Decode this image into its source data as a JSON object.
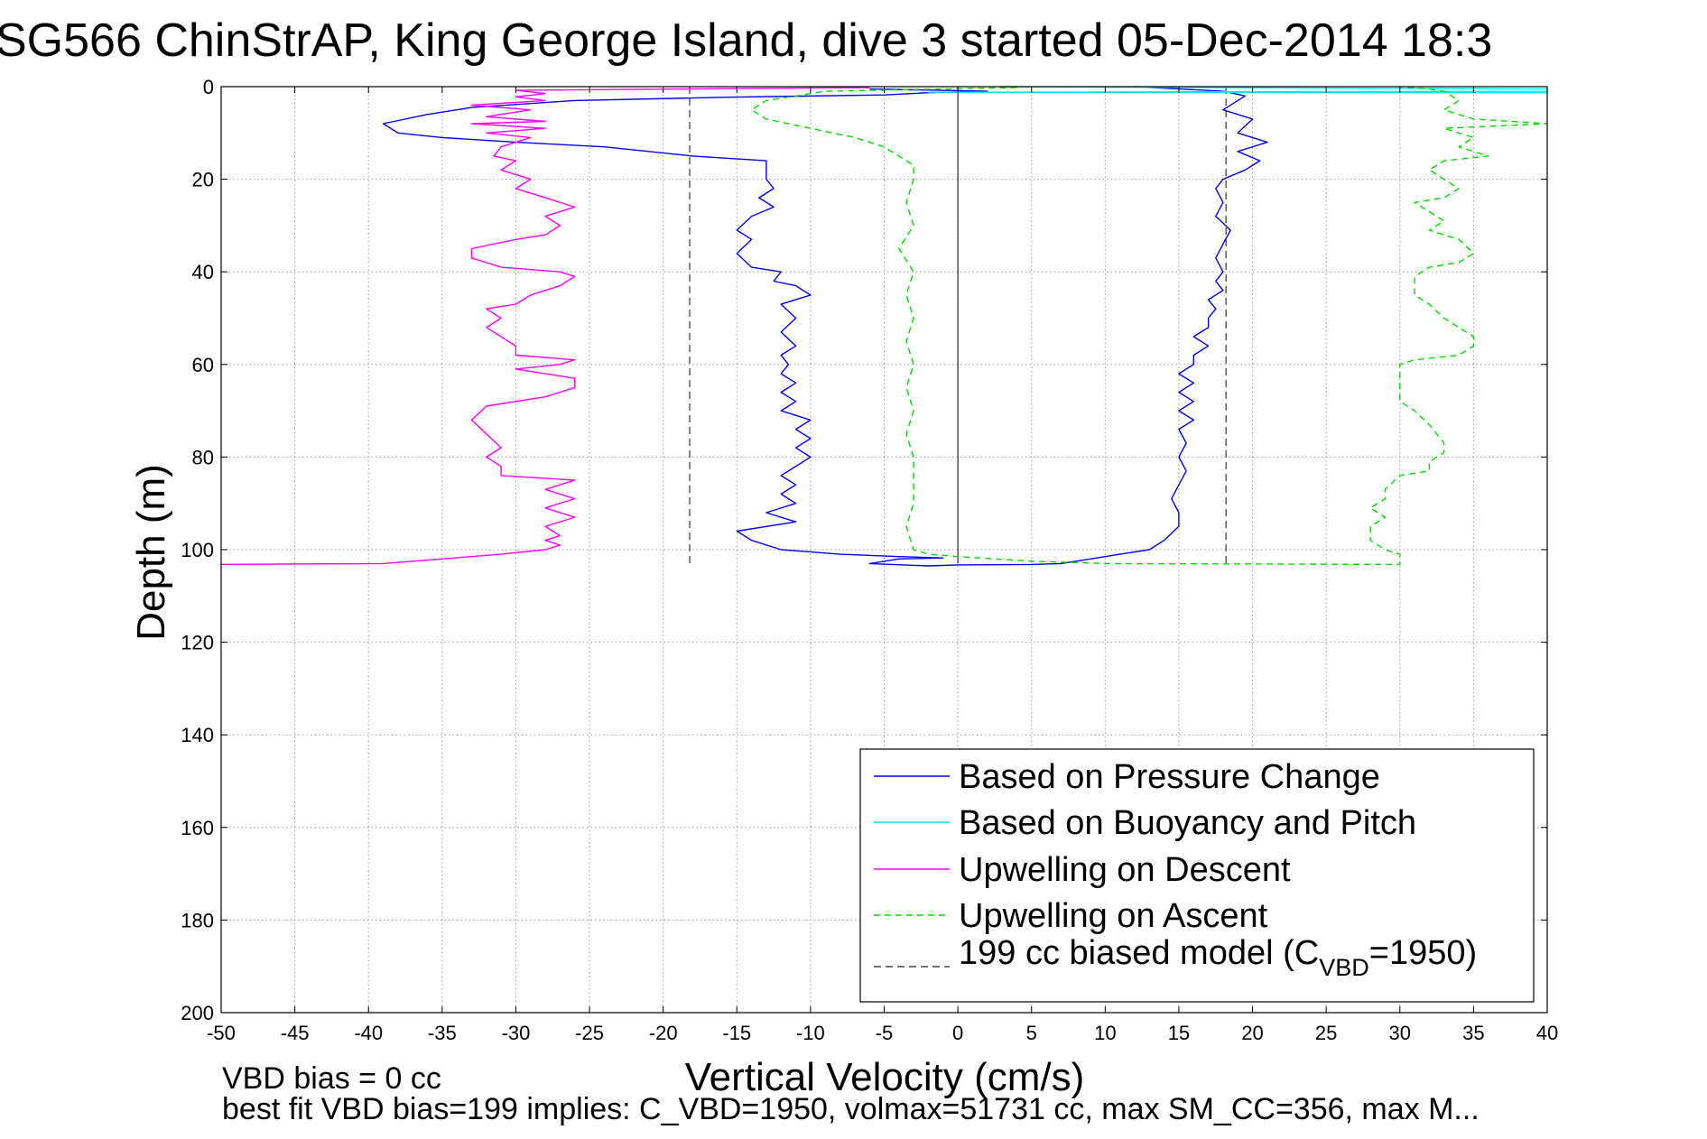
{
  "chart_data": {
    "type": "line",
    "title": "SG566 ChinStrAP, King George Island, dive 3 started 05-Dec-2014 18:3",
    "xlabel": "Vertical Velocity (cm/s)",
    "ylabel": "Depth (m)",
    "xlim": [
      -50,
      40
    ],
    "ylim": [
      0,
      200
    ],
    "y_reversed": true,
    "grid": true,
    "x_ticks": [
      -50,
      -45,
      -40,
      -35,
      -30,
      -25,
      -20,
      -15,
      -10,
      -5,
      0,
      5,
      10,
      15,
      20,
      25,
      30,
      35,
      40
    ],
    "y_ticks": [
      0,
      20,
      40,
      60,
      80,
      100,
      120,
      140,
      160,
      180,
      200
    ],
    "legend_position": "lower-right",
    "legend": {
      "pressure": "Based on Pressure Change",
      "buoyancy": "Based on Buoyancy and Pitch",
      "descent": "Upwelling on Descent",
      "ascent": "Upwelling on Ascent",
      "model_prefix": "199 cc biased model (C",
      "model_sub": "VBD",
      "model_suffix": "=1950)"
    },
    "series": [
      {
        "name": "Based on Pressure Change",
        "color": "#0000ff",
        "style": "solid",
        "points": [
          [
            -6,
            0.5
          ],
          [
            2,
            1
          ],
          [
            -2,
            1.3
          ],
          [
            -5,
            1.8
          ],
          [
            -16,
            2.3
          ],
          [
            -26,
            3
          ],
          [
            -33,
            4.5
          ],
          [
            -36,
            6
          ],
          [
            -39,
            8
          ],
          [
            -38,
            10
          ],
          [
            -35,
            11
          ],
          [
            -30,
            12
          ],
          [
            -24,
            13
          ],
          [
            -18,
            15
          ],
          [
            -13,
            16
          ],
          [
            -13,
            20
          ],
          [
            -12.5,
            22
          ],
          [
            -13.5,
            24
          ],
          [
            -12.5,
            26
          ],
          [
            -14,
            28
          ],
          [
            -15,
            31
          ],
          [
            -14,
            33
          ],
          [
            -15,
            36
          ],
          [
            -14,
            39
          ],
          [
            -12,
            40
          ],
          [
            -12.5,
            42
          ],
          [
            -11,
            43
          ],
          [
            -10,
            45
          ],
          [
            -12,
            47
          ],
          [
            -11,
            50
          ],
          [
            -12,
            53
          ],
          [
            -11,
            56
          ],
          [
            -12,
            58
          ],
          [
            -11.5,
            60
          ],
          [
            -12,
            62
          ],
          [
            -11,
            64
          ],
          [
            -12,
            66
          ],
          [
            -11,
            68
          ],
          [
            -12,
            70
          ],
          [
            -10,
            72
          ],
          [
            -11,
            74
          ],
          [
            -10,
            76
          ],
          [
            -11,
            78
          ],
          [
            -10,
            80
          ],
          [
            -11,
            82
          ],
          [
            -12,
            84
          ],
          [
            -11,
            86
          ],
          [
            -12,
            88
          ],
          [
            -11,
            90
          ],
          [
            -13,
            92
          ],
          [
            -11,
            94
          ],
          [
            -15,
            96
          ],
          [
            -14,
            98
          ],
          [
            -12,
            100
          ],
          [
            -8,
            101
          ],
          [
            -4,
            101.5
          ],
          [
            -1,
            101.8
          ],
          [
            -4,
            102
          ],
          [
            -6,
            103
          ],
          [
            -2,
            103.5
          ],
          [
            0,
            103.3
          ],
          [
            5,
            103.2
          ],
          [
            7,
            103
          ],
          [
            9,
            102
          ],
          [
            11,
            101
          ],
          [
            13,
            100
          ],
          [
            14,
            98
          ],
          [
            15,
            95
          ],
          [
            15,
            92
          ],
          [
            14.5,
            89
          ],
          [
            15,
            86
          ],
          [
            15.5,
            83
          ],
          [
            15,
            80
          ],
          [
            15.5,
            77
          ],
          [
            15,
            74
          ],
          [
            16,
            72
          ],
          [
            15,
            70
          ],
          [
            16,
            68
          ],
          [
            15,
            66
          ],
          [
            16,
            64
          ],
          [
            15,
            62
          ],
          [
            16,
            60
          ],
          [
            16,
            58
          ],
          [
            17,
            56
          ],
          [
            16,
            54
          ],
          [
            17,
            52
          ],
          [
            17,
            50
          ],
          [
            17.5,
            48
          ],
          [
            17,
            46
          ],
          [
            18,
            44
          ],
          [
            17.5,
            42
          ],
          [
            18,
            40
          ],
          [
            17.5,
            37
          ],
          [
            18,
            34
          ],
          [
            18.5,
            31
          ],
          [
            17.5,
            28
          ],
          [
            18,
            25
          ],
          [
            17.5,
            22
          ],
          [
            18,
            20
          ],
          [
            19.5,
            18
          ],
          [
            20.5,
            16
          ],
          [
            19,
            14
          ],
          [
            21,
            12
          ],
          [
            19,
            10
          ],
          [
            20,
            7
          ],
          [
            18,
            5
          ],
          [
            19.5,
            2
          ],
          [
            18,
            1
          ],
          [
            15,
            0.5
          ],
          [
            12,
            0
          ]
        ]
      },
      {
        "name": "Based on Buoyancy and Pitch",
        "color": "#00e8e8",
        "style": "solid",
        "points": [
          [
            3,
            0
          ],
          [
            40,
            0.5
          ],
          [
            40,
            1
          ],
          [
            -2,
            1.2
          ],
          [
            40,
            1.3
          ]
        ]
      },
      {
        "name": "Upwelling on Descent",
        "color": "#ff00ff",
        "style": "solid",
        "points": [
          [
            -6,
            0.2
          ],
          [
            -30,
            0.8
          ],
          [
            -28,
            1.5
          ],
          [
            -30,
            2.2
          ],
          [
            -28,
            3
          ],
          [
            -33,
            4
          ],
          [
            -29,
            5
          ],
          [
            -32,
            6.5
          ],
          [
            -28,
            7.5
          ],
          [
            -33,
            8
          ],
          [
            -28,
            9
          ],
          [
            -32,
            10
          ],
          [
            -29,
            11
          ],
          [
            -30,
            12
          ],
          [
            -31,
            13
          ],
          [
            -31.5,
            15
          ],
          [
            -30,
            16
          ],
          [
            -31,
            18
          ],
          [
            -29,
            20
          ],
          [
            -30,
            22
          ],
          [
            -28,
            24
          ],
          [
            -26,
            26
          ],
          [
            -28,
            28
          ],
          [
            -27,
            30
          ],
          [
            -28,
            32
          ],
          [
            -30,
            33
          ],
          [
            -33,
            35
          ],
          [
            -33,
            37
          ],
          [
            -31,
            39
          ],
          [
            -27,
            40
          ],
          [
            -26,
            41
          ],
          [
            -27,
            43
          ],
          [
            -29,
            45
          ],
          [
            -30,
            47
          ],
          [
            -32,
            48
          ],
          [
            -31,
            50
          ],
          [
            -32,
            52
          ],
          [
            -31,
            54
          ],
          [
            -30,
            56
          ],
          [
            -30,
            58
          ],
          [
            -26,
            59
          ],
          [
            -27,
            60
          ],
          [
            -30,
            61
          ],
          [
            -26,
            63
          ],
          [
            -26,
            65
          ],
          [
            -28,
            67
          ],
          [
            -32,
            69
          ],
          [
            -33,
            72
          ],
          [
            -32,
            75
          ],
          [
            -31,
            78
          ],
          [
            -32,
            80
          ],
          [
            -31,
            82
          ],
          [
            -31,
            84
          ],
          [
            -26,
            85
          ],
          [
            -28,
            87
          ],
          [
            -26,
            89
          ],
          [
            -28,
            91
          ],
          [
            -26,
            93
          ],
          [
            -28,
            95
          ],
          [
            -27,
            97
          ],
          [
            -28,
            98
          ],
          [
            -27,
            99
          ],
          [
            -28,
            100
          ],
          [
            -31,
            101
          ],
          [
            -35,
            102
          ],
          [
            -39,
            103
          ],
          [
            -50,
            103.2
          ]
        ]
      },
      {
        "name": "Upwelling on Ascent",
        "color": "#00dd00",
        "style": "dashed",
        "points": [
          [
            4,
            0.2
          ],
          [
            -9,
            1
          ],
          [
            -13,
            3
          ],
          [
            -14,
            5
          ],
          [
            -13,
            7
          ],
          [
            -10,
            9
          ],
          [
            -7,
            11
          ],
          [
            -5,
            13
          ],
          [
            -4,
            15
          ],
          [
            -3,
            17
          ],
          [
            -3,
            20
          ],
          [
            -3.5,
            25
          ],
          [
            -3,
            30
          ],
          [
            -4,
            35
          ],
          [
            -3,
            40
          ],
          [
            -3.5,
            45
          ],
          [
            -3,
            50
          ],
          [
            -3.5,
            55
          ],
          [
            -3,
            60
          ],
          [
            -3.5,
            65
          ],
          [
            -3,
            70
          ],
          [
            -3.5,
            75
          ],
          [
            -3,
            80
          ],
          [
            -3,
            85
          ],
          [
            -3,
            90
          ],
          [
            -3.5,
            95
          ],
          [
            -3,
            100
          ],
          [
            -2,
            101
          ],
          [
            0,
            101.5
          ],
          [
            5,
            102.5
          ],
          [
            10,
            103
          ],
          [
            30,
            103.2
          ],
          [
            30,
            101
          ],
          [
            29,
            100
          ],
          [
            28,
            98
          ],
          [
            28,
            95
          ],
          [
            29,
            93
          ],
          [
            28,
            91
          ],
          [
            29,
            89
          ],
          [
            29,
            87
          ],
          [
            30,
            84
          ],
          [
            32,
            83
          ],
          [
            32,
            81
          ],
          [
            33,
            79
          ],
          [
            33,
            77
          ],
          [
            32,
            73
          ],
          [
            31,
            70
          ],
          [
            30,
            68
          ],
          [
            30,
            66
          ],
          [
            30,
            63
          ],
          [
            30,
            60
          ],
          [
            31,
            59
          ],
          [
            34,
            58
          ],
          [
            35,
            56
          ],
          [
            35,
            54
          ],
          [
            34,
            52
          ],
          [
            33,
            50
          ],
          [
            32,
            47
          ],
          [
            31,
            45
          ],
          [
            31,
            43
          ],
          [
            31,
            41
          ],
          [
            32,
            39
          ],
          [
            34,
            38
          ],
          [
            35,
            36
          ],
          [
            34,
            33
          ],
          [
            32,
            31
          ],
          [
            33,
            29
          ],
          [
            32,
            27
          ],
          [
            31,
            25
          ],
          [
            33,
            24
          ],
          [
            34,
            22
          ],
          [
            33,
            20
          ],
          [
            32,
            18
          ],
          [
            33,
            16
          ],
          [
            36,
            15
          ],
          [
            34,
            13
          ],
          [
            35,
            11
          ],
          [
            33,
            9
          ],
          [
            40,
            8
          ],
          [
            35,
            7
          ],
          [
            33,
            5
          ],
          [
            34,
            3
          ],
          [
            33,
            1
          ],
          [
            32,
            0.5
          ],
          [
            30,
            0
          ]
        ]
      },
      {
        "name": "199 cc biased model (CVBD=1950)",
        "color": "#444444",
        "style": "dashed",
        "vertical_lines_x": [
          -18.2,
          18.2
        ],
        "y_range": [
          0,
          103
        ]
      }
    ]
  },
  "footnotes": {
    "line1": "VBD bias = 0 cc",
    "line2": "best fit VBD bias=199 implies: C_VBD=1950, volmax=51731 cc, max SM_CC=356, max M..."
  }
}
